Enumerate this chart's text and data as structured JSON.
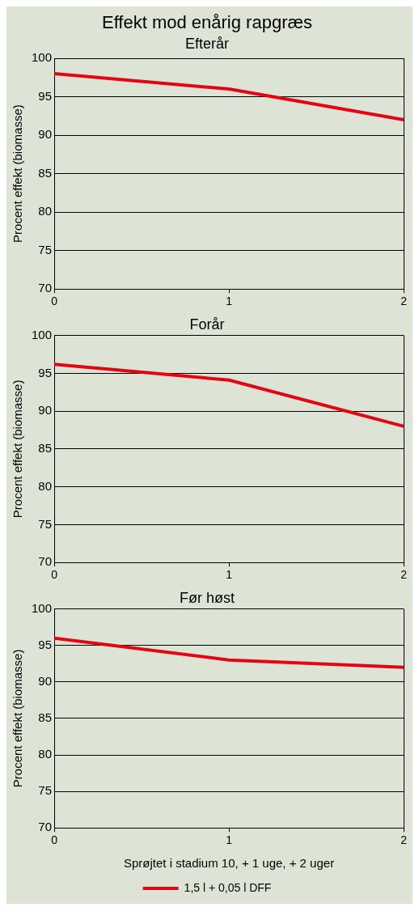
{
  "chart_data": [
    {
      "type": "line",
      "title": "Effekt mod enårig rapgræs",
      "subtitle": "Efterår",
      "ylabel": "Procent effekt (biomasse)",
      "x": [
        0,
        1,
        2
      ],
      "xlim": [
        0,
        2
      ],
      "xticks": [
        0,
        1,
        2
      ],
      "ylim": [
        70,
        100
      ],
      "yticks": [
        70,
        75,
        80,
        85,
        90,
        95,
        100
      ],
      "grid": "y",
      "series": [
        {
          "color": "#e30613",
          "values": [
            98,
            96,
            92
          ]
        }
      ]
    },
    {
      "type": "line",
      "title": "Forår",
      "ylabel": "Procent effekt (biomasse)",
      "x": [
        0,
        1,
        2
      ],
      "xlim": [
        0,
        2
      ],
      "xticks": [
        0,
        1,
        2
      ],
      "ylim": [
        70,
        100
      ],
      "yticks": [
        70,
        75,
        80,
        85,
        90,
        95,
        100
      ],
      "grid": "y",
      "series": [
        {
          "color": "#e30613",
          "values": [
            96.2,
            94.1,
            88
          ]
        }
      ]
    },
    {
      "type": "line",
      "title": "Før høst",
      "xlabel": "Sprøjtet i stadium 10, + 1 uge, + 2 uger",
      "ylabel": "Procent effekt (biomasse)",
      "x": [
        0,
        1,
        2
      ],
      "xlim": [
        0,
        2
      ],
      "xticks": [
        0,
        1,
        2
      ],
      "ylim": [
        70,
        100
      ],
      "yticks": [
        70,
        75,
        80,
        85,
        90,
        95,
        100
      ],
      "grid": "y",
      "legend": "bottom",
      "series": [
        {
          "name": "1,5 l + 0,05 l DFF",
          "color": "#e30613",
          "values": [
            96,
            93,
            92
          ]
        }
      ]
    }
  ]
}
